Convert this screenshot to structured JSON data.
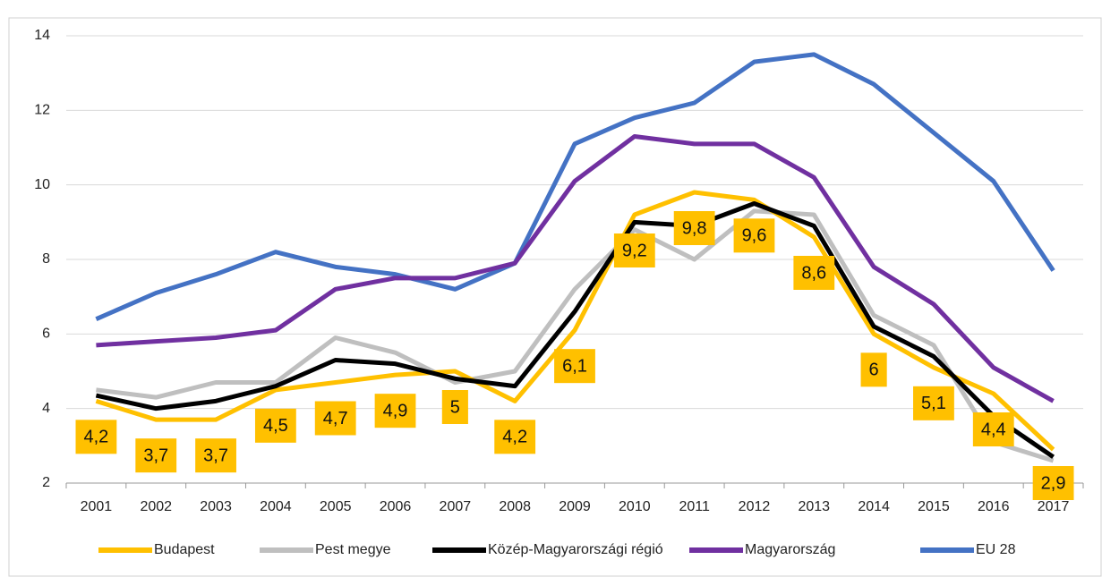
{
  "chart_data": {
    "type": "line",
    "categories": [
      "2001",
      "2002",
      "2003",
      "2004",
      "2005",
      "2006",
      "2007",
      "2008",
      "2009",
      "2010",
      "2011",
      "2012",
      "2013",
      "2014",
      "2015",
      "2016",
      "2017"
    ],
    "series": [
      {
        "name": "Budapest",
        "color": "#ffc000",
        "values": [
          4.2,
          3.7,
          3.7,
          4.5,
          4.7,
          4.9,
          5,
          4.2,
          6.1,
          9.2,
          9.8,
          9.6,
          8.6,
          6,
          5.1,
          4.4,
          2.9
        ],
        "value_labels": [
          "4,2",
          "3,7",
          "3,7",
          "4,5",
          "4,7",
          "4,9",
          "5",
          "4,2",
          "6,1",
          "9,2",
          "9,8",
          "9,6",
          "8,6",
          "6",
          "5,1",
          "4,4",
          "2,9"
        ]
      },
      {
        "name": "Pest megye",
        "color": "#bfbfbf",
        "values": [
          4.5,
          4.3,
          4.7,
          4.7,
          5.9,
          5.5,
          4.7,
          5.0,
          7.2,
          8.8,
          8.0,
          9.3,
          9.2,
          6.5,
          5.7,
          3.1,
          2.6
        ]
      },
      {
        "name": "Közép-Magyarországi régió",
        "color": "#000000",
        "values": [
          4.35,
          4.0,
          4.2,
          4.6,
          5.3,
          5.2,
          4.8,
          4.6,
          6.6,
          9.0,
          8.9,
          9.5,
          8.9,
          6.2,
          5.4,
          3.8,
          2.7
        ]
      },
      {
        "name": "Magyarország",
        "color": "#7030a0",
        "values": [
          5.7,
          5.8,
          5.9,
          6.1,
          7.2,
          7.5,
          7.5,
          7.9,
          10.1,
          11.3,
          11.1,
          11.1,
          10.2,
          7.8,
          6.8,
          5.1,
          4.2
        ]
      },
      {
        "name": "EU 28",
        "color": "#4472c4",
        "values": [
          6.4,
          7.1,
          7.6,
          8.2,
          7.8,
          7.6,
          7.2,
          7.9,
          11.1,
          11.8,
          12.2,
          13.3,
          13.5,
          12.7,
          11.4,
          10.1,
          7.7
        ]
      }
    ],
    "ylim": [
      2,
      14
    ],
    "yticks": [
      2,
      4,
      6,
      8,
      10,
      12,
      14
    ],
    "grid": true,
    "legend": "bottom"
  }
}
